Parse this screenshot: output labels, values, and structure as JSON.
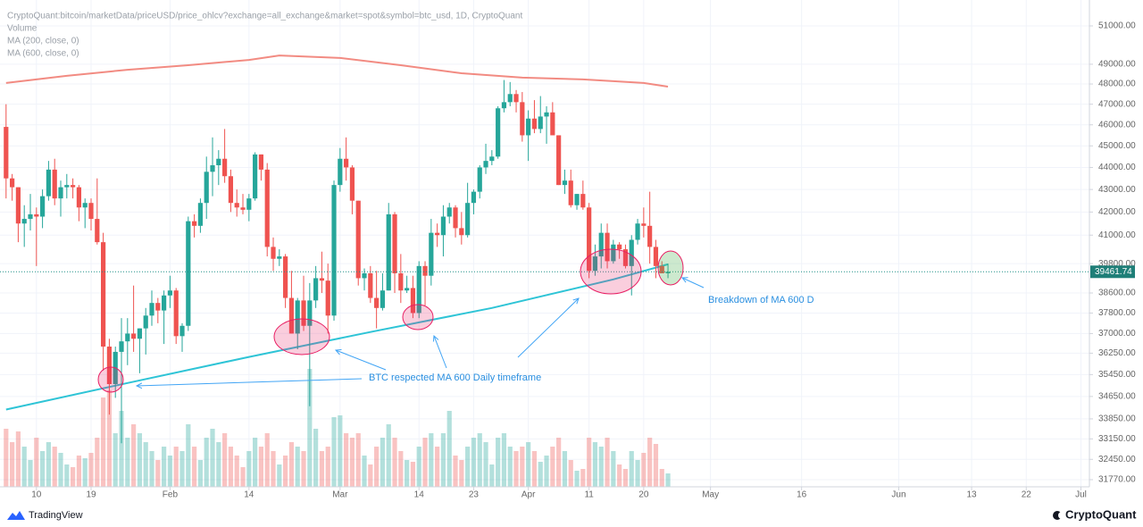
{
  "chart_data": {
    "type": "candlestick",
    "title": "CryptoQuant:bitcoin/marketData/priceUSD/price_ohlcv?exchange=all_exchange&market=spot&symbol=btc_usd, 1D, CryptoQuant",
    "up_color": "#26a69a",
    "down_color": "#ef5350",
    "log_scale": true,
    "grid": true,
    "open": [
      45900,
      43500,
      43100,
      41500,
      41700,
      41900,
      41800,
      42700,
      43900,
      42600,
      43100,
      43200,
      43100,
      42200,
      42400,
      41700,
      40700,
      36500,
      35100,
      36300,
      36700,
      37000,
      36800,
      37200,
      37700,
      38200,
      37900,
      38500,
      38700,
      36900,
      37300,
      41600,
      41400,
      42400,
      43800,
      44100,
      44400,
      43600,
      42400,
      42200,
      42100,
      42600,
      44600,
      43900,
      40500,
      40000,
      40100,
      38400,
      37000,
      38300,
      37300,
      38300,
      39200,
      39100,
      37700,
      43200,
      44400,
      44000,
      42500,
      39200,
      39400,
      38400,
      38000,
      38700,
      41900,
      39400,
      38700,
      38800,
      37800,
      39700,
      39300,
      41100,
      41000,
      41800,
      42200,
      41300,
      41000,
      42400,
      42900,
      44000,
      44300,
      44500,
      46800,
      47100,
      47500,
      47100,
      45500,
      46300,
      45800,
      46400,
      46600,
      45500,
      43200,
      43400,
      42300,
      42800,
      42200,
      39500,
      40100,
      41100,
      39900,
      40600,
      40400,
      39700,
      40800,
      41500,
      41400,
      40500,
      39700,
      39400
    ],
    "high": [
      47000,
      43700,
      43100,
      42300,
      42800,
      42200,
      43000,
      44300,
      44400,
      43400,
      43700,
      43500,
      43200,
      42600,
      42600,
      43500,
      41100,
      36800,
      36500,
      37600,
      37600,
      38900,
      37200,
      38000,
      38700,
      38400,
      38700,
      39300,
      38800,
      37400,
      41800,
      41900,
      42600,
      44500,
      45400,
      44800,
      45800,
      43900,
      43000,
      42800,
      42800,
      44700,
      44600,
      44200,
      40900,
      40400,
      40200,
      39500,
      38400,
      39300,
      39000,
      39700,
      40300,
      39800,
      43400,
      44900,
      45400,
      44100,
      42500,
      39600,
      39700,
      39500,
      39400,
      42400,
      42000,
      40200,
      39300,
      39300,
      39900,
      39900,
      41700,
      41500,
      42300,
      42400,
      42300,
      42000,
      43300,
      43000,
      44100,
      45100,
      44800,
      46900,
      48200,
      48100,
      47700,
      47600,
      46700,
      47200,
      47400,
      46900,
      47100,
      45500,
      43900,
      43900,
      42800,
      43400,
      42400,
      40600,
      41500,
      41500,
      40800,
      40700,
      40600,
      41000,
      41700,
      42200,
      42900,
      40800,
      39900,
      39800
    ],
    "low": [
      42600,
      42500,
      40700,
      40500,
      41200,
      39700,
      41300,
      42500,
      42300,
      41800,
      42600,
      42600,
      41600,
      41300,
      41200,
      40600,
      35600,
      34000,
      34600,
      33000,
      35800,
      36300,
      35500,
      36200,
      37300,
      37400,
      36600,
      38000,
      36600,
      36300,
      37100,
      40900,
      41100,
      41700,
      42700,
      43200,
      43300,
      42000,
      41800,
      41900,
      41600,
      42500,
      43400,
      40100,
      39500,
      39700,
      38000,
      37000,
      36400,
      37100,
      34300,
      38000,
      38600,
      37000,
      37500,
      42900,
      43400,
      41900,
      38900,
      38700,
      38200,
      37200,
      37900,
      38700,
      38600,
      38200,
      38600,
      37600,
      37600,
      38100,
      38900,
      40500,
      40100,
      41500,
      40900,
      40600,
      40900,
      41900,
      42600,
      43700,
      44100,
      44400,
      46600,
      46900,
      46600,
      45200,
      44300,
      45600,
      45600,
      45100,
      45500,
      43200,
      42800,
      42200,
      42100,
      42100,
      39200,
      39300,
      39600,
      39600,
      39800,
      40000,
      39600,
      38500,
      40600,
      40900,
      39800,
      39200,
      39400,
      39200
    ],
    "close": [
      43500,
      43100,
      41500,
      41700,
      41900,
      41800,
      42700,
      43900,
      42600,
      43100,
      43200,
      43100,
      42200,
      42400,
      41700,
      40700,
      36500,
      35100,
      36300,
      36700,
      37000,
      36800,
      37200,
      37700,
      38200,
      37900,
      38500,
      38700,
      36900,
      37300,
      41600,
      41400,
      42400,
      43800,
      44100,
      44400,
      43600,
      42400,
      42200,
      42100,
      42600,
      44600,
      43900,
      40500,
      40000,
      40100,
      38400,
      37000,
      38300,
      37300,
      38300,
      39200,
      39100,
      37700,
      43200,
      44400,
      44000,
      42500,
      39200,
      39400,
      38400,
      38000,
      38700,
      41900,
      39400,
      38700,
      38800,
      37800,
      39700,
      39300,
      41100,
      41000,
      41800,
      42200,
      41300,
      41000,
      42400,
      42900,
      44000,
      44300,
      44500,
      46800,
      47100,
      47500,
      47100,
      45500,
      46300,
      45800,
      46400,
      46600,
      45500,
      43200,
      43400,
      42300,
      42800,
      42200,
      39500,
      40100,
      41100,
      39900,
      40600,
      40400,
      39700,
      40800,
      41500,
      41400,
      40500,
      39700,
      39400,
      39461.74
    ],
    "volume": {
      "name": "Volume",
      "values": [
        65,
        50,
        62,
        45,
        30,
        55,
        40,
        50,
        45,
        38,
        25,
        22,
        35,
        32,
        38,
        55,
        100,
        108,
        60,
        85,
        55,
        70,
        60,
        50,
        40,
        30,
        45,
        35,
        45,
        40,
        70,
        45,
        30,
        55,
        65,
        50,
        60,
        45,
        35,
        22,
        40,
        55,
        45,
        60,
        40,
        25,
        35,
        50,
        45,
        40,
        132,
        65,
        40,
        45,
        78,
        80,
        60,
        55,
        60,
        35,
        25,
        45,
        55,
        70,
        55,
        40,
        30,
        28,
        45,
        55,
        60,
        45,
        60,
        85,
        35,
        30,
        45,
        55,
        60,
        50,
        25,
        55,
        60,
        45,
        40,
        45,
        50,
        40,
        28,
        35,
        45,
        55,
        40,
        30,
        18,
        20,
        55,
        50,
        45,
        55,
        40,
        25,
        20,
        40,
        30,
        38,
        55,
        48,
        20,
        15
      ]
    },
    "moving_averages": [
      {
        "name": "MA (200, close, 0)",
        "color": "#f28b82",
        "x": [
          0,
          10,
          20,
          30,
          40,
          45,
          55,
          65,
          75,
          85,
          95,
          105,
          109
        ],
        "values": [
          48050,
          48410,
          48720,
          48950,
          49220,
          49450,
          49320,
          48950,
          48540,
          48320,
          48230,
          48050,
          47870
        ]
      },
      {
        "name": "MA (600, close, 0)",
        "color": "#2ec4d6",
        "x": [
          0,
          20,
          40,
          60,
          80,
          100,
          109
        ],
        "values": [
          34180,
          35140,
          36110,
          37060,
          38000,
          39150,
          39770
        ]
      }
    ],
    "annotations": [
      "BTC respected MA 600 Daily timeframe",
      "Breakdown of MA 600 D"
    ],
    "xlim": [
      -1,
      178.4
    ],
    "xticks": [
      {
        "value": 5,
        "label": "10"
      },
      {
        "value": 14,
        "label": "19"
      },
      {
        "value": 27,
        "label": "Feb"
      },
      {
        "value": 40,
        "label": "14"
      },
      {
        "value": 55,
        "label": "Mar"
      },
      {
        "value": 68,
        "label": "14"
      },
      {
        "value": 77,
        "label": "23"
      },
      {
        "value": 86,
        "label": "Apr"
      },
      {
        "value": 96,
        "label": "11"
      },
      {
        "value": 105,
        "label": "20"
      },
      {
        "value": 116,
        "label": "May"
      },
      {
        "value": 131,
        "label": "16"
      },
      {
        "value": 147,
        "label": "Jun"
      },
      {
        "value": 159,
        "label": "13"
      },
      {
        "value": 168,
        "label": "22"
      },
      {
        "value": 177,
        "label": "Jul"
      }
    ],
    "ylim": [
      31534,
      52396
    ],
    "yticks": [
      {
        "value": 51000,
        "label": "51000.00"
      },
      {
        "value": 49000,
        "label": "49000.00"
      },
      {
        "value": 48000,
        "label": "48000.00"
      },
      {
        "value": 47000,
        "label": "47000.00"
      },
      {
        "value": 46000,
        "label": "46000.00"
      },
      {
        "value": 45000,
        "label": "45000.00"
      },
      {
        "value": 44000,
        "label": "44000.00"
      },
      {
        "value": 43000,
        "label": "43000.00"
      },
      {
        "value": 42000,
        "label": "42000.00"
      },
      {
        "value": 41000,
        "label": "41000.00"
      },
      {
        "value": 39800,
        "label": "39800.00"
      },
      {
        "value": 38600,
        "label": "38600.00"
      },
      {
        "value": 37800,
        "label": "37800.00"
      },
      {
        "value": 37000,
        "label": "37000.00"
      },
      {
        "value": 36250,
        "label": "36250.00"
      },
      {
        "value": 35450,
        "label": "35450.00"
      },
      {
        "value": 34650,
        "label": "34650.00"
      },
      {
        "value": 33850,
        "label": "33850.00"
      },
      {
        "value": 33150,
        "label": "33150.00"
      },
      {
        "value": 32450,
        "label": "32450.00"
      },
      {
        "value": 31770,
        "label": "31770.00"
      }
    ]
  },
  "branding": {
    "left": "TradingView",
    "right": "CryptoQuant"
  }
}
